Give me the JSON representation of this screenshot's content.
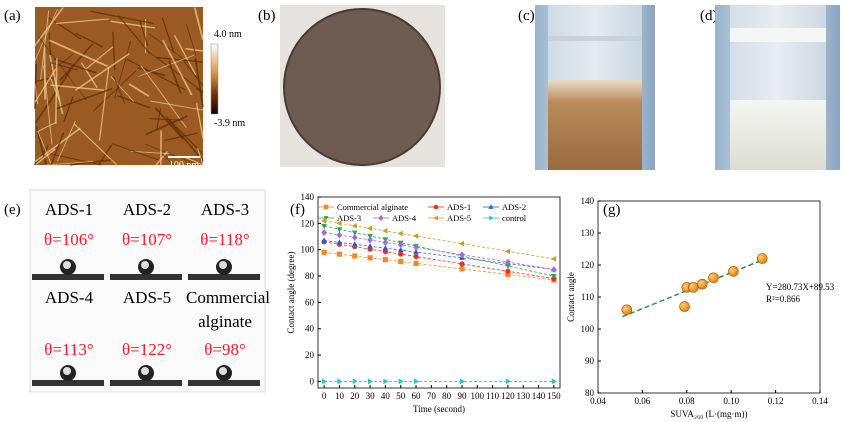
{
  "panels": {
    "a": {
      "label": "(a)",
      "colorbar_max": "4.0 nm",
      "colorbar_min": "-3.9 nm",
      "scale_bar": "100 nm"
    },
    "b": {
      "label": "(b)"
    },
    "c": {
      "label": "(c)"
    },
    "d": {
      "label": "(d)"
    },
    "e": {
      "label": "(e)",
      "items": [
        {
          "name": "ADS-1",
          "angle": "θ=106°"
        },
        {
          "name": "ADS-2",
          "angle": "θ=107°"
        },
        {
          "name": "ADS-3",
          "angle": "θ=118°"
        },
        {
          "name": "ADS-4",
          "angle": "θ=113°"
        },
        {
          "name": "ADS-5",
          "angle": "θ=122°"
        },
        {
          "name": "Commercial alginate",
          "angle": "θ=98°"
        }
      ]
    },
    "f": {
      "label": "(f)"
    },
    "g": {
      "label": "(g)"
    }
  },
  "chart_data": [
    {
      "type": "line",
      "x_label": "Time (second)",
      "y_label": "Contact angle (degree)",
      "x": [
        0,
        10,
        20,
        30,
        40,
        50,
        60,
        90,
        120,
        150
      ],
      "series": [
        {
          "name": "Commercial alginate",
          "color": "#f08a24",
          "marker": "square",
          "values": [
            98,
            96.6,
            95.2,
            93.8,
            92.4,
            91,
            89.6,
            85.4,
            81.2,
            77
          ]
        },
        {
          "name": "ADS-1",
          "color": "#e8302a",
          "marker": "circle",
          "values": [
            106,
            104.1,
            102.3,
            100.4,
            98.5,
            96.7,
            94.8,
            89.2,
            83.6,
            78
          ]
        },
        {
          "name": "ADS-2",
          "color": "#2a5bd7",
          "marker": "triangle-up",
          "values": [
            107,
            105.5,
            104.1,
            102.6,
            101.1,
            99.7,
            98.2,
            93.8,
            89.4,
            85
          ]
        },
        {
          "name": "ADS-3",
          "color": "#2aa84a",
          "marker": "triangle-down",
          "values": [
            118,
            115.5,
            112.9,
            110.4,
            107.9,
            105.3,
            102.8,
            95.2,
            87.6,
            80
          ]
        },
        {
          "name": "ADS-4",
          "color": "#a06ad8",
          "marker": "diamond",
          "values": [
            113,
            111.1,
            109.3,
            107.4,
            105.5,
            103.7,
            101.8,
            96.2,
            90.6,
            85
          ]
        },
        {
          "name": "ADS-5",
          "color": "#c8a020",
          "marker": "triangle-left",
          "values": [
            122,
            120.1,
            118.1,
            116.2,
            114.3,
            112.3,
            110.4,
            104.6,
            98.8,
            93
          ]
        },
        {
          "name": "control",
          "color": "#20c8c8",
          "marker": "triangle-right",
          "values": [
            0,
            0,
            0,
            0,
            0,
            0,
            0,
            0,
            0,
            0
          ]
        }
      ],
      "xlim": [
        -4,
        154
      ],
      "ylim": [
        -5,
        140
      ],
      "xticks": [
        0,
        10,
        20,
        30,
        40,
        50,
        60,
        70,
        80,
        90,
        100,
        110,
        120,
        130,
        140,
        150
      ],
      "yticks": [
        0,
        20,
        40,
        60,
        80,
        100,
        120,
        140
      ]
    },
    {
      "type": "scatter",
      "x_label": "SUVA₂₆₀ (L·(mg·m))",
      "y_label": "Contact angle",
      "x": [
        0.053,
        0.079,
        0.08,
        0.083,
        0.087,
        0.092,
        0.101,
        0.114
      ],
      "values": [
        106,
        107,
        113,
        113,
        114,
        116,
        118,
        122
      ],
      "color": "#f59a1a",
      "fit_line": {
        "slope": 280.73,
        "intercept": 89.53,
        "color": "#2a9a3a"
      },
      "annotations": [
        "Y=280.73X+89.53",
        "R²=0.866"
      ],
      "xlim": [
        0.04,
        0.14
      ],
      "ylim": [
        80,
        140
      ],
      "xticks": [
        0.04,
        0.06,
        0.08,
        {
          "value": 0.1,
          "label": "0.10"
        },
        0.12,
        0.14
      ],
      "yticks": [
        80,
        90,
        100,
        110,
        120,
        130,
        140
      ]
    }
  ]
}
